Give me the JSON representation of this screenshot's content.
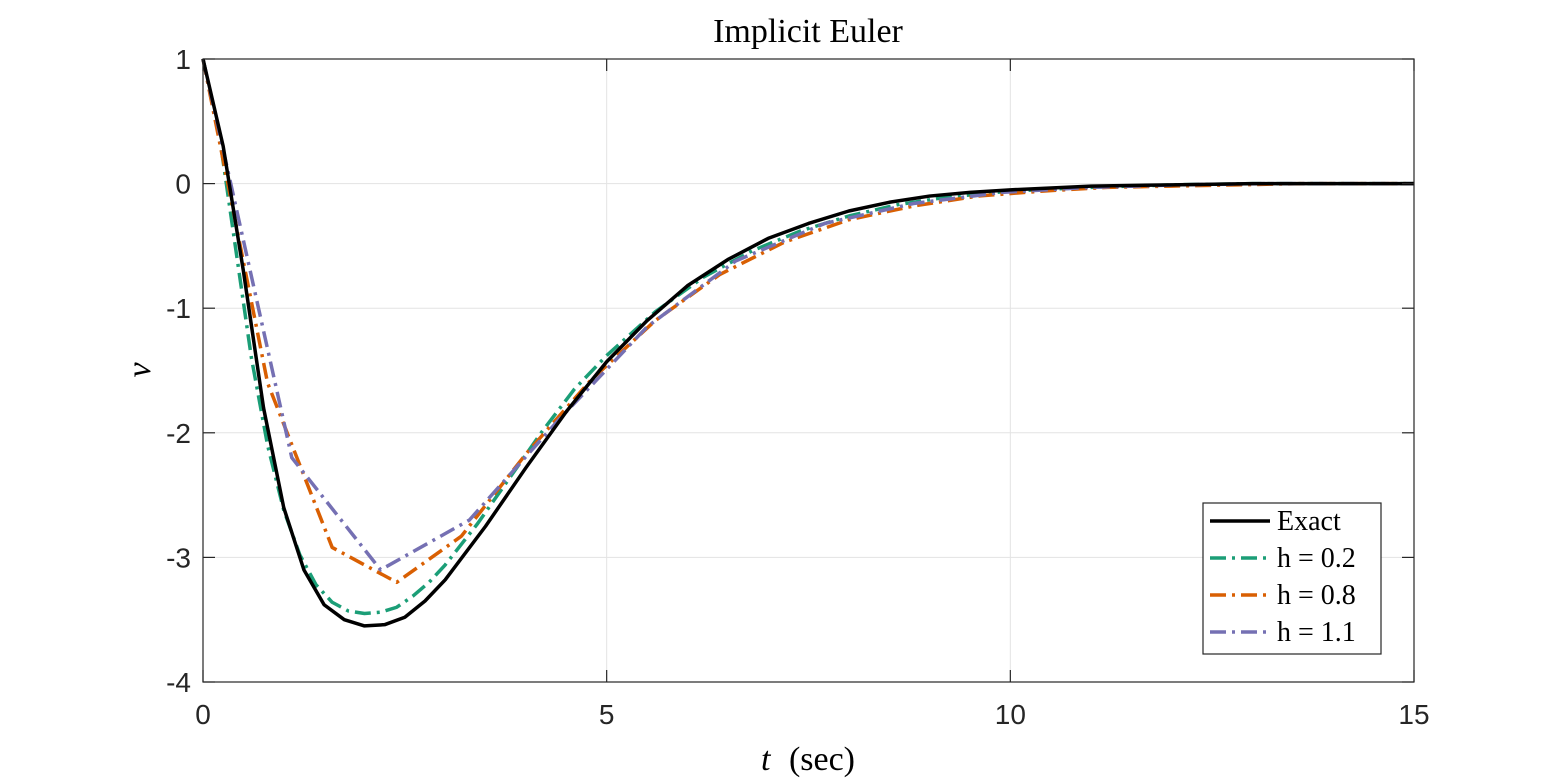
{
  "chart_data": {
    "type": "line",
    "title": "Implicit Euler",
    "xlabel": "(sec)",
    "xlabel_var": "t",
    "ylabel": "v",
    "xlim": [
      0,
      15
    ],
    "ylim": [
      -4,
      1
    ],
    "xticks": [
      0,
      5,
      10,
      15
    ],
    "xtick_labels": [
      "0",
      "5",
      "10",
      "15"
    ],
    "yticks": [
      -4,
      -3,
      -2,
      -1,
      0,
      1
    ],
    "ytick_labels": [
      "-4",
      "-3",
      "-2",
      "-1",
      "0",
      "1"
    ],
    "grid": true,
    "legend_position": "bottom-right",
    "series": [
      {
        "name": "Exact",
        "color": "#000000",
        "style": "solid",
        "x": [
          0,
          0.25,
          0.5,
          0.75,
          1.0,
          1.25,
          1.5,
          1.75,
          2.0,
          2.25,
          2.5,
          2.75,
          3.0,
          3.5,
          4.0,
          4.5,
          5.0,
          5.5,
          6.0,
          6.5,
          7.0,
          7.5,
          8.0,
          8.5,
          9.0,
          9.5,
          10.0,
          11.0,
          12.0,
          13.0,
          14.0,
          15.0
        ],
        "y": [
          1.0,
          0.3,
          -0.7,
          -1.8,
          -2.6,
          -3.1,
          -3.38,
          -3.5,
          -3.55,
          -3.54,
          -3.48,
          -3.35,
          -3.18,
          -2.75,
          -2.28,
          -1.83,
          -1.43,
          -1.1,
          -0.82,
          -0.61,
          -0.44,
          -0.32,
          -0.22,
          -0.15,
          -0.1,
          -0.07,
          -0.05,
          -0.02,
          -0.01,
          0.0,
          0.0,
          0.0
        ]
      },
      {
        "name": "h = 0.2",
        "color": "#1b9e77",
        "style": "dashdot",
        "x": [
          0,
          0.2,
          0.4,
          0.6,
          0.8,
          1.0,
          1.2,
          1.4,
          1.6,
          1.8,
          2.0,
          2.2,
          2.4,
          2.6,
          2.8,
          3.0,
          3.4,
          3.8,
          4.2,
          4.6,
          5.0,
          5.6,
          6.2,
          6.8,
          7.4,
          8.0,
          8.6,
          9.2,
          10.0,
          11.0,
          12.0,
          13.0,
          14.0,
          15.0
        ],
        "y": [
          1.0,
          0.4,
          -0.5,
          -1.4,
          -2.1,
          -2.62,
          -2.98,
          -3.22,
          -3.36,
          -3.43,
          -3.45,
          -3.44,
          -3.4,
          -3.31,
          -3.2,
          -3.06,
          -2.73,
          -2.36,
          -1.99,
          -1.65,
          -1.38,
          -1.03,
          -0.75,
          -0.54,
          -0.38,
          -0.26,
          -0.17,
          -0.11,
          -0.06,
          -0.03,
          -0.01,
          0.0,
          0.0,
          0.0
        ]
      },
      {
        "name": "h = 0.8",
        "color": "#d95f02",
        "style": "dashdot",
        "x": [
          0,
          0.8,
          1.6,
          2.4,
          3.2,
          4.0,
          4.8,
          5.6,
          6.4,
          7.2,
          8.0,
          8.8,
          9.6,
          10.4,
          11.2,
          12.0,
          12.8,
          13.6,
          14.4,
          15.0
        ],
        "y": [
          1.0,
          -1.6,
          -2.92,
          -3.2,
          -2.83,
          -2.17,
          -1.58,
          -1.1,
          -0.73,
          -0.47,
          -0.29,
          -0.18,
          -0.1,
          -0.06,
          -0.03,
          -0.02,
          -0.01,
          0.0,
          0.0,
          0.0
        ]
      },
      {
        "name": "h = 1.1",
        "color": "#7570b3",
        "style": "dashdot",
        "x": [
          0,
          1.1,
          2.2,
          3.3,
          4.4,
          5.5,
          6.6,
          7.7,
          8.8,
          9.9,
          11.0,
          12.1,
          13.2,
          14.3,
          15.0
        ],
        "y": [
          1.0,
          -2.2,
          -3.1,
          -2.7,
          -1.9,
          -1.15,
          -0.62,
          -0.32,
          -0.16,
          -0.07,
          -0.03,
          -0.01,
          0.0,
          0.0,
          0.0
        ]
      }
    ]
  }
}
